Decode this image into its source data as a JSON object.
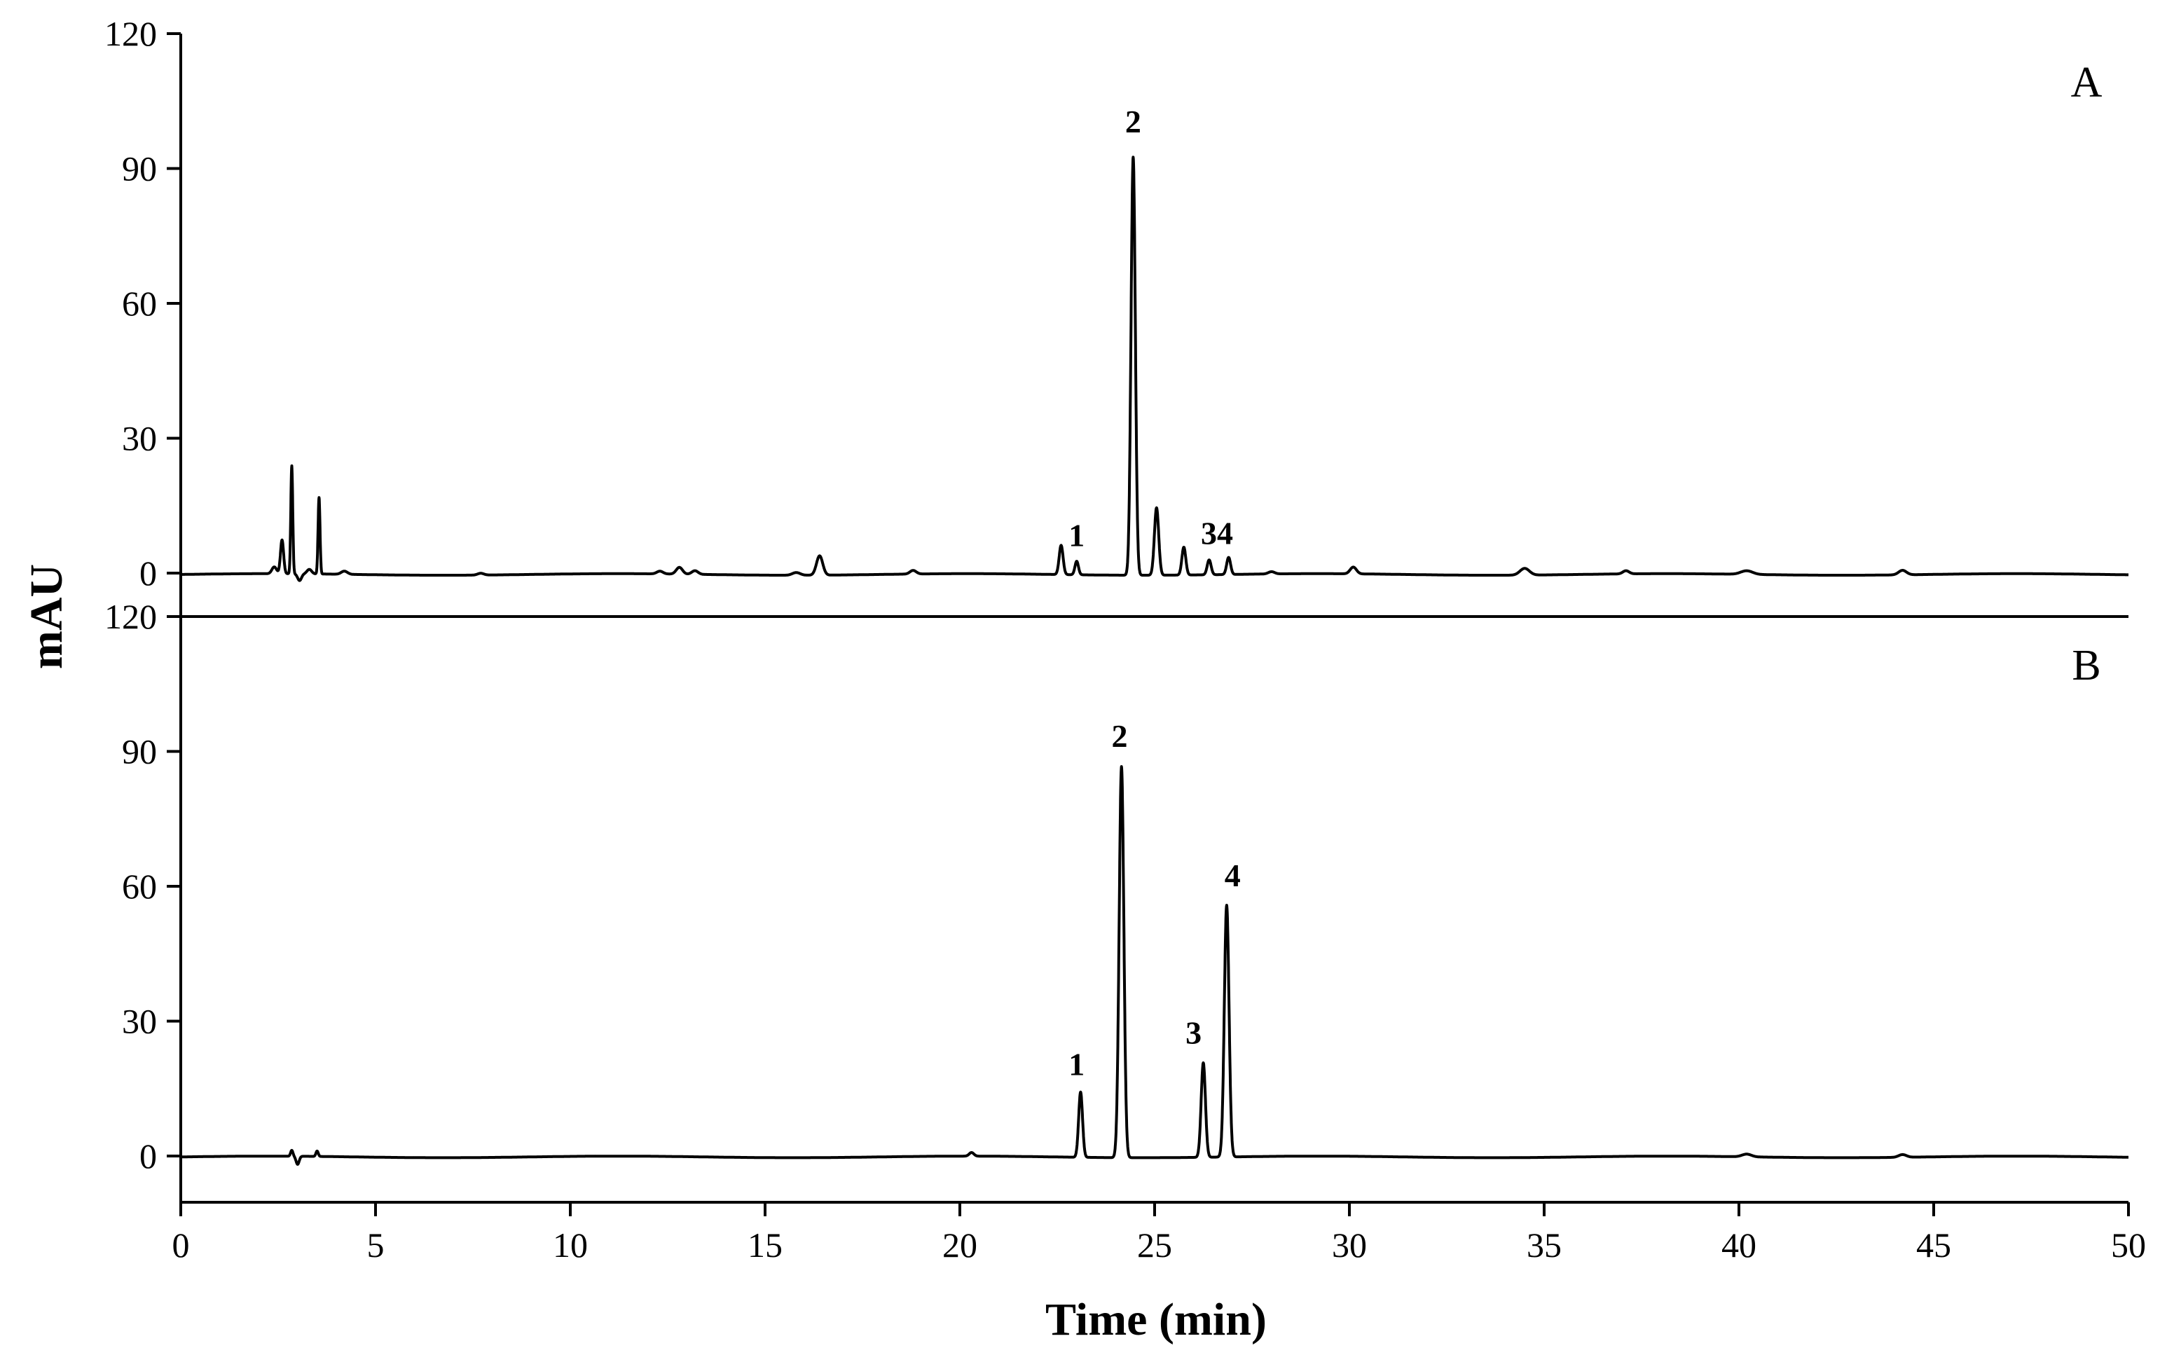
{
  "chart_data": {
    "type": "line",
    "xlabel": "Time (min)",
    "ylabel": "mAU",
    "xlim": [
      0,
      50
    ],
    "x_ticks": [
      "0",
      "5",
      "10",
      "15",
      "20",
      "25",
      "30",
      "35",
      "40",
      "45",
      "50"
    ],
    "grid": false,
    "legend": "none",
    "panels": [
      {
        "label": "A",
        "ylim": [
          -3,
          120
        ],
        "y_ticks": [
          "0",
          "30",
          "60",
          "90",
          "120"
        ],
        "baseline": -0.3,
        "peaks": [
          {
            "t": 2.4,
            "h": 1.5,
            "w": 0.06
          },
          {
            "t": 2.6,
            "h": 7.5,
            "w": 0.04
          },
          {
            "t": 2.85,
            "h": 24,
            "w": 0.025
          },
          {
            "t": 3.05,
            "h": -1.5,
            "w": 0.05
          },
          {
            "t": 3.3,
            "h": 1,
            "w": 0.06
          },
          {
            "t": 3.55,
            "h": 17,
            "w": 0.025
          },
          {
            "t": 4.2,
            "h": 0.7,
            "w": 0.08
          },
          {
            "t": 7.7,
            "h": 0.4,
            "w": 0.08
          },
          {
            "t": 12.3,
            "h": 0.6,
            "w": 0.08
          },
          {
            "t": 12.8,
            "h": 1.5,
            "w": 0.08
          },
          {
            "t": 13.2,
            "h": 0.8,
            "w": 0.08
          },
          {
            "t": 15.8,
            "h": 0.6,
            "w": 0.1
          },
          {
            "t": 16.4,
            "h": 4.3,
            "w": 0.08
          },
          {
            "t": 18.8,
            "h": 0.8,
            "w": 0.08
          },
          {
            "t": 22.6,
            "h": 6.5,
            "w": 0.05
          },
          {
            "t": 23.0,
            "h": 3,
            "w": 0.045
          },
          {
            "t": 24.45,
            "h": 93,
            "w": 0.055
          },
          {
            "t": 25.05,
            "h": 15,
            "w": 0.055
          },
          {
            "t": 25.75,
            "h": 6.2,
            "w": 0.05
          },
          {
            "t": 26.4,
            "h": 3.3,
            "w": 0.05
          },
          {
            "t": 26.9,
            "h": 3.8,
            "w": 0.05
          },
          {
            "t": 28.0,
            "h": 0.5,
            "w": 0.08
          },
          {
            "t": 30.1,
            "h": 1.5,
            "w": 0.08
          },
          {
            "t": 34.5,
            "h": 1.5,
            "w": 0.12
          },
          {
            "t": 37.1,
            "h": 0.7,
            "w": 0.08
          },
          {
            "t": 40.2,
            "h": 0.8,
            "w": 0.15
          },
          {
            "t": 44.2,
            "h": 1,
            "w": 0.1
          }
        ],
        "peak_labels": [
          {
            "text": "1",
            "t": 23.0,
            "y": 6
          },
          {
            "text": "2",
            "t": 24.45,
            "y": 98
          },
          {
            "text": "34",
            "t": 26.6,
            "y": 6.5
          }
        ]
      },
      {
        "label": "B",
        "ylim": [
          -10,
          120
        ],
        "y_ticks": [
          "0",
          "30",
          "60",
          "90",
          "120"
        ],
        "baseline": -0.2,
        "peaks": [
          {
            "t": 2.85,
            "h": 1.3,
            "w": 0.03
          },
          {
            "t": 3.0,
            "h": -1.8,
            "w": 0.04
          },
          {
            "t": 3.5,
            "h": 1.2,
            "w": 0.03
          },
          {
            "t": 20.3,
            "h": 0.8,
            "w": 0.06
          },
          {
            "t": 23.1,
            "h": 14.5,
            "w": 0.05
          },
          {
            "t": 24.15,
            "h": 87,
            "w": 0.06
          },
          {
            "t": 26.25,
            "h": 21,
            "w": 0.055
          },
          {
            "t": 26.85,
            "h": 56,
            "w": 0.06
          },
          {
            "t": 40.2,
            "h": 0.6,
            "w": 0.12
          },
          {
            "t": 44.2,
            "h": 0.6,
            "w": 0.1
          }
        ],
        "peak_labels": [
          {
            "text": "1",
            "t": 23.0,
            "y": 18
          },
          {
            "text": "2",
            "t": 24.1,
            "y": 91
          },
          {
            "text": "3",
            "t": 26.0,
            "y": 25
          },
          {
            "text": "4",
            "t": 27.0,
            "y": 60
          }
        ]
      }
    ]
  }
}
